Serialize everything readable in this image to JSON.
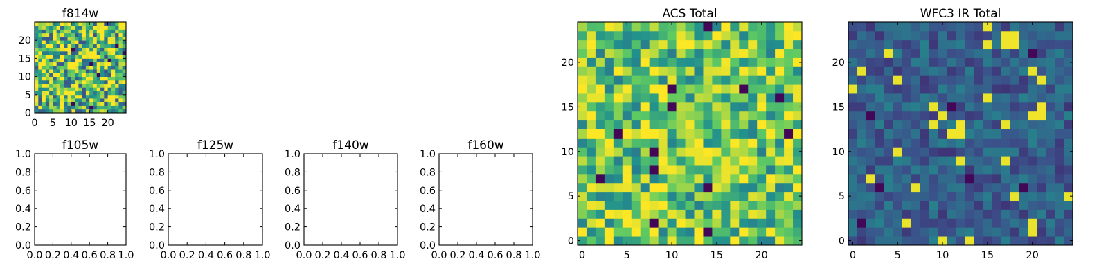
{
  "chart_data": [
    {
      "type": "heatmap",
      "title": "f814w",
      "xlim": [
        0,
        25
      ],
      "ylim": [
        0,
        25
      ],
      "xticks": [
        "0",
        "5",
        "10",
        "15",
        "20"
      ],
      "yticks": [
        "0",
        "5",
        "10",
        "15",
        "20"
      ],
      "grid": false,
      "colormap": "viridis",
      "value_range": [
        0,
        1
      ],
      "rows": 25,
      "cols": 25,
      "pattern": "noise",
      "base": 0.7,
      "spread": 0.45,
      "seed": 11
    },
    {
      "type": "heatmap",
      "title": "f105w",
      "xlim": [
        0,
        1
      ],
      "ylim": [
        0,
        1
      ],
      "xticks": [
        "0.0",
        "0.2",
        "0.4",
        "0.6",
        "0.8",
        "1.0"
      ],
      "yticks": [
        "0.0",
        "0.2",
        "0.4",
        "0.6",
        "0.8",
        "1.0"
      ],
      "grid": false,
      "values": []
    },
    {
      "type": "heatmap",
      "title": "f125w",
      "xlim": [
        0,
        1
      ],
      "ylim": [
        0,
        1
      ],
      "xticks": [
        "0.0",
        "0.2",
        "0.4",
        "0.6",
        "0.8",
        "1.0"
      ],
      "yticks": [
        "0.0",
        "0.2",
        "0.4",
        "0.6",
        "0.8",
        "1.0"
      ],
      "grid": false,
      "values": []
    },
    {
      "type": "heatmap",
      "title": "f140w",
      "xlim": [
        0,
        1
      ],
      "ylim": [
        0,
        1
      ],
      "xticks": [
        "0.0",
        "0.2",
        "0.4",
        "0.6",
        "0.8",
        "1.0"
      ],
      "yticks": [
        "0.0",
        "0.2",
        "0.4",
        "0.6",
        "0.8",
        "1.0"
      ],
      "grid": false,
      "values": []
    },
    {
      "type": "heatmap",
      "title": "f160w",
      "xlim": [
        0,
        1
      ],
      "ylim": [
        0,
        1
      ],
      "xticks": [
        "0.0",
        "0.2",
        "0.4",
        "0.6",
        "0.8",
        "1.0"
      ],
      "yticks": [
        "0.0",
        "0.2",
        "0.4",
        "0.6",
        "0.8",
        "1.0"
      ],
      "grid": false,
      "values": []
    },
    {
      "type": "heatmap",
      "title": "ACS Total",
      "xlim": [
        -0.5,
        24.5
      ],
      "ylim": [
        -0.5,
        24.5
      ],
      "xticks": [
        "0",
        "5",
        "10",
        "15",
        "20"
      ],
      "yticks": [
        "0",
        "5",
        "10",
        "15",
        "20"
      ],
      "grid": false,
      "colormap": "viridis",
      "value_range": [
        0,
        1
      ],
      "rows": 25,
      "cols": 25,
      "pattern": "noise",
      "base": 0.74,
      "spread": 0.32,
      "seed": 23
    },
    {
      "type": "heatmap",
      "title": "WFC3 IR Total",
      "xlim": [
        -0.5,
        24.5
      ],
      "ylim": [
        -0.5,
        24.5
      ],
      "xticks": [
        "0",
        "5",
        "10",
        "15",
        "20"
      ],
      "yticks": [
        "0",
        "5",
        "10",
        "15",
        "20"
      ],
      "grid": false,
      "colormap": "viridis",
      "value_range": [
        0,
        1
      ],
      "rows": 25,
      "cols": 25,
      "pattern": "noise",
      "base": 0.3,
      "spread": 0.14,
      "seed": 37,
      "hotspots": [
        [
          17,
          23
        ],
        [
          18,
          23
        ],
        [
          17,
          22
        ],
        [
          18,
          22
        ],
        [
          21,
          15
        ],
        [
          21,
          14
        ],
        [
          20,
          14
        ],
        [
          12,
          13
        ],
        [
          12,
          12
        ],
        [
          11,
          12
        ]
      ]
    }
  ],
  "colors": {
    "viridis_stops": [
      "#440154",
      "#3b528b",
      "#21908d",
      "#5dc963",
      "#fde725"
    ],
    "axes": "#000000",
    "background": "#ffffff"
  }
}
